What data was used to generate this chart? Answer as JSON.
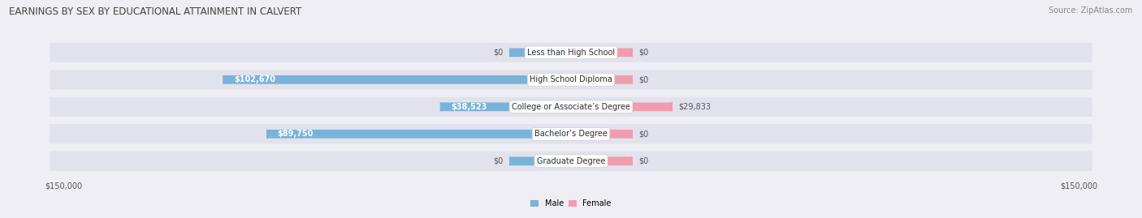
{
  "title": "EARNINGS BY SEX BY EDUCATIONAL ATTAINMENT IN CALVERT",
  "source": "Source: ZipAtlas.com",
  "categories": [
    "Less than High School",
    "High School Diploma",
    "College or Associate’s Degree",
    "Bachelor’s Degree",
    "Graduate Degree"
  ],
  "male_values": [
    0,
    102670,
    38523,
    89750,
    0
  ],
  "female_values": [
    0,
    0,
    29833,
    0,
    0
  ],
  "male_color": "#7ab3d9",
  "female_color": "#f09cb0",
  "max_val": 150000,
  "bg_color": "#eeeef4",
  "row_bg_color": "#e2e2ec",
  "row_bg_dark": "#d5d5e3",
  "title_fontsize": 8.5,
  "source_fontsize": 7,
  "bar_fontsize": 7,
  "label_fontsize": 7,
  "axis_fontsize": 7
}
